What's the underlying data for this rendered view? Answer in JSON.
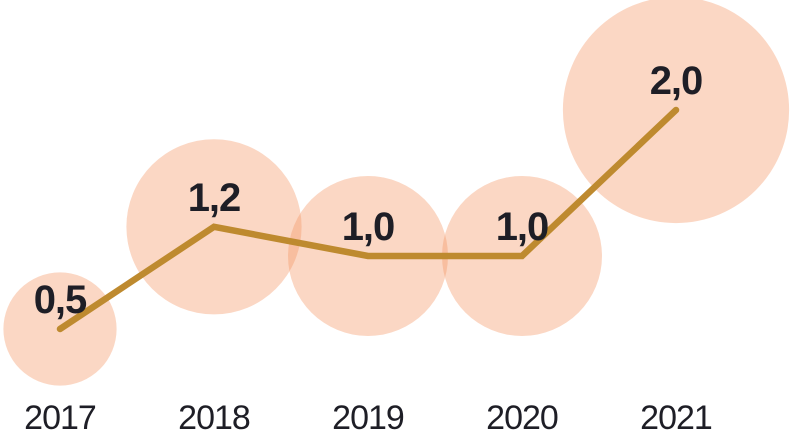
{
  "chart_data": {
    "type": "line",
    "subtype": "bubble-line",
    "categories": [
      "2017",
      "2018",
      "2019",
      "2020",
      "2021"
    ],
    "series": [
      {
        "name": "value",
        "values": [
          0.5,
          1.2,
          1.0,
          1.0,
          2.0
        ]
      }
    ],
    "point_labels": [
      "0,5",
      "1,2",
      "1,0",
      "1,0",
      "2,0"
    ],
    "decimal_separator": ",",
    "bubble_sizing": "area proportional to value",
    "legend": "none",
    "grid": false,
    "axes": {
      "x_labels_visible": true,
      "y_axis_visible": false,
      "value_range_shown": [
        0.5,
        2.0
      ]
    },
    "colors": {
      "background": "#FFFFFF",
      "bubble_fill": "#F49664",
      "bubble_opacity": 0.38,
      "line": "#BE8A2F",
      "text": "#1E1E26"
    }
  }
}
